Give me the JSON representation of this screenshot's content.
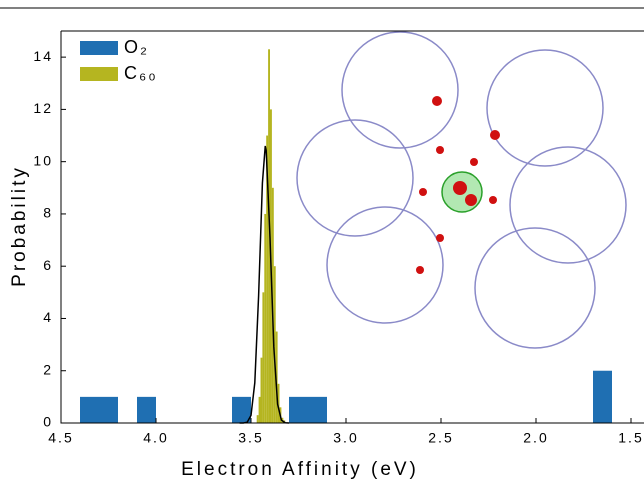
{
  "chart_data": {
    "type": "histogram",
    "xlabel": "Electron Affinity (eV)",
    "ylabel": "Probability",
    "xlim": [
      4.5,
      1.5
    ],
    "ylim": [
      0,
      15
    ],
    "xticks": [
      4.5,
      {
        "value": 4,
        "label": "4.0"
      },
      3.5,
      {
        "value": 3,
        "label": "3.0"
      },
      2.5,
      {
        "value": 2,
        "label": "2.0"
      },
      1.5
    ],
    "yticks": [
      0,
      2,
      4,
      6,
      8,
      10,
      12,
      14
    ],
    "series": [
      {
        "name": "O₂",
        "color": "#1f6fb2",
        "bins": [
          4.4,
          4.3,
          4.2,
          4.1,
          4.0,
          3.9,
          3.8,
          3.7,
          3.6,
          3.5,
          3.4,
          3.3,
          3.2,
          3.1,
          3.0,
          2.9,
          2.8,
          2.7,
          2.6,
          2.5,
          2.4,
          2.3,
          2.2,
          2.1,
          2.0,
          1.9,
          1.8,
          1.7,
          1.6
        ],
        "values": [
          1,
          1,
          0,
          1,
          0,
          0,
          0,
          0,
          1,
          0,
          0,
          1,
          1,
          0,
          0,
          0,
          0,
          0,
          0,
          0,
          0,
          0,
          0,
          0,
          0,
          0,
          0,
          2
        ]
      },
      {
        "name": "C₆₀",
        "color": "#b5b520",
        "bins": [
          3.47,
          3.46,
          3.45,
          3.44,
          3.43,
          3.42,
          3.41,
          3.4,
          3.39,
          3.38,
          3.37,
          3.36,
          3.35,
          3.34,
          3.33,
          3.32
        ],
        "values": [
          0.3,
          1,
          2.5,
          5,
          8,
          11,
          14.3,
          12,
          9,
          6,
          3.5,
          1.5,
          0.6,
          0.2,
          0.1
        ]
      }
    ],
    "fit": {
      "color": "#000000",
      "x": [
        3.56,
        3.54,
        3.52,
        3.5,
        3.48,
        3.46,
        3.44,
        3.425,
        3.42,
        3.4,
        3.38,
        3.36,
        3.34,
        3.32,
        3.3
      ],
      "values": [
        0,
        0,
        0.03,
        0.29,
        1.54,
        4.86,
        9.18,
        10.6,
        10.43,
        7.1,
        2.92,
        0.72,
        0.11,
        0.01,
        0
      ]
    },
    "legend": "top-left"
  }
}
